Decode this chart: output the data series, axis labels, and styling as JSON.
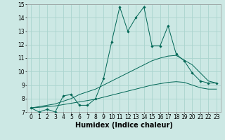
{
  "xlabel": "Humidex (Indice chaleur)",
  "xlim": [
    -0.5,
    23.5
  ],
  "ylim": [
    7,
    15
  ],
  "xticks": [
    0,
    1,
    2,
    3,
    4,
    5,
    6,
    7,
    8,
    9,
    10,
    11,
    12,
    13,
    14,
    15,
    16,
    17,
    18,
    19,
    20,
    21,
    22,
    23
  ],
  "yticks": [
    7,
    8,
    9,
    10,
    11,
    12,
    13,
    14,
    15
  ],
  "bg_color": "#cce8e4",
  "grid_color": "#aad4ce",
  "line_color": "#006655",
  "series1_x": [
    0,
    1,
    2,
    3,
    4,
    5,
    6,
    7,
    8,
    9,
    10,
    11,
    12,
    13,
    14,
    15,
    16,
    17,
    18,
    19,
    20,
    21,
    22,
    23
  ],
  "series1_y": [
    7.3,
    7.0,
    7.2,
    7.0,
    8.2,
    8.3,
    7.5,
    7.5,
    8.0,
    9.5,
    12.2,
    14.8,
    13.0,
    14.0,
    14.8,
    11.9,
    11.9,
    13.4,
    11.3,
    10.8,
    9.9,
    9.3,
    9.15,
    9.15
  ],
  "series2_x": [
    0,
    1,
    2,
    3,
    4,
    5,
    6,
    7,
    8,
    9,
    10,
    11,
    12,
    13,
    14,
    15,
    16,
    17,
    18,
    19,
    20,
    21,
    22,
    23
  ],
  "series2_y": [
    7.3,
    7.4,
    7.5,
    7.6,
    7.8,
    8.0,
    8.3,
    8.5,
    8.7,
    9.0,
    9.3,
    9.6,
    9.9,
    10.2,
    10.5,
    10.8,
    11.0,
    11.15,
    11.2,
    10.85,
    10.5,
    9.9,
    9.3,
    9.15
  ],
  "series3_x": [
    0,
    1,
    2,
    3,
    4,
    5,
    6,
    7,
    8,
    9,
    10,
    11,
    12,
    13,
    14,
    15,
    16,
    17,
    18,
    19,
    20,
    21,
    22,
    23
  ],
  "series3_y": [
    7.3,
    7.35,
    7.4,
    7.45,
    7.55,
    7.65,
    7.75,
    7.85,
    7.95,
    8.1,
    8.25,
    8.4,
    8.55,
    8.7,
    8.85,
    9.0,
    9.1,
    9.2,
    9.25,
    9.2,
    9.0,
    8.8,
    8.7,
    8.7
  ],
  "font_size_tick": 5.5,
  "font_size_xlabel": 7
}
